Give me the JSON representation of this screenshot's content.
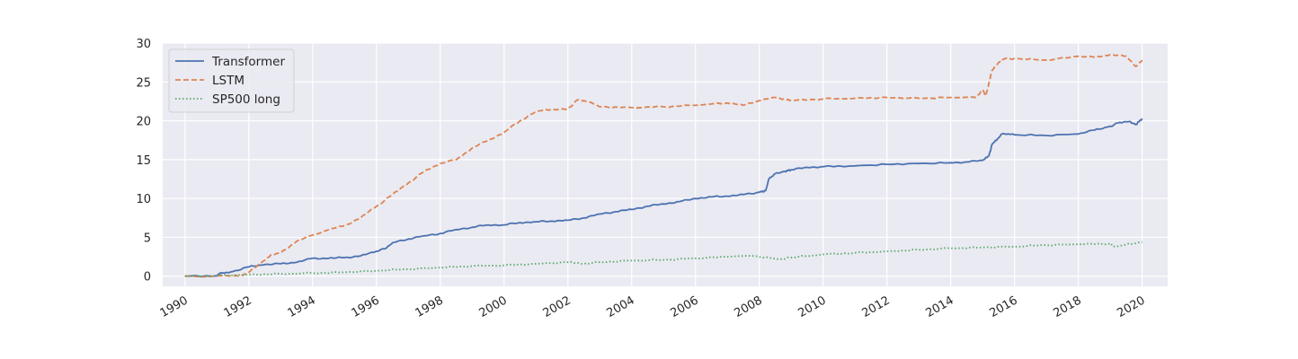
{
  "chart_data": {
    "type": "line",
    "title": "",
    "xlabel": "",
    "ylabel": "",
    "xlim": [
      1989.3,
      2020.8
    ],
    "ylim": [
      -1.3,
      30
    ],
    "grid": true,
    "legend_position": "top-left",
    "yticks": [
      0,
      5,
      10,
      15,
      20,
      25,
      30
    ],
    "xticks": [
      1990,
      1992,
      1994,
      1996,
      1998,
      2000,
      2002,
      2004,
      2006,
      2008,
      2010,
      2012,
      2014,
      2016,
      2018,
      2020
    ],
    "series": [
      {
        "name": "Transformer",
        "color": "#4c72b0",
        "dash": "solid",
        "points": [
          [
            1990.0,
            0.0
          ],
          [
            1991.0,
            0.05
          ],
          [
            1991.1,
            0.4
          ],
          [
            1991.5,
            0.6
          ],
          [
            1992.0,
            1.2
          ],
          [
            1992.5,
            1.5
          ],
          [
            1993.0,
            1.6
          ],
          [
            1993.5,
            1.8
          ],
          [
            1994.0,
            2.3
          ],
          [
            1994.5,
            2.3
          ],
          [
            1995.0,
            2.4
          ],
          [
            1995.5,
            2.6
          ],
          [
            1996.0,
            3.2
          ],
          [
            1996.3,
            3.6
          ],
          [
            1996.5,
            4.3
          ],
          [
            1997.0,
            4.8
          ],
          [
            1997.5,
            5.2
          ],
          [
            1998.0,
            5.5
          ],
          [
            1998.5,
            6.0
          ],
          [
            1999.0,
            6.3
          ],
          [
            1999.5,
            6.6
          ],
          [
            2000.0,
            6.6
          ],
          [
            2000.5,
            6.9
          ],
          [
            2001.0,
            7.0
          ],
          [
            2001.5,
            7.1
          ],
          [
            2002.0,
            7.2
          ],
          [
            2002.5,
            7.5
          ],
          [
            2003.0,
            8.0
          ],
          [
            2003.5,
            8.3
          ],
          [
            2004.0,
            8.6
          ],
          [
            2004.5,
            9.0
          ],
          [
            2005.0,
            9.3
          ],
          [
            2005.5,
            9.6
          ],
          [
            2006.0,
            10.0
          ],
          [
            2006.5,
            10.2
          ],
          [
            2007.0,
            10.3
          ],
          [
            2007.5,
            10.5
          ],
          [
            2008.0,
            10.8
          ],
          [
            2008.2,
            11.0
          ],
          [
            2008.3,
            12.5
          ],
          [
            2008.5,
            13.2
          ],
          [
            2008.8,
            13.5
          ],
          [
            2009.0,
            13.7
          ],
          [
            2009.5,
            14.0
          ],
          [
            2010.0,
            14.1
          ],
          [
            2011.0,
            14.2
          ],
          [
            2012.0,
            14.4
          ],
          [
            2013.0,
            14.5
          ],
          [
            2014.0,
            14.6
          ],
          [
            2014.5,
            14.7
          ],
          [
            2015.0,
            14.9
          ],
          [
            2015.2,
            15.5
          ],
          [
            2015.3,
            17.0
          ],
          [
            2015.5,
            17.8
          ],
          [
            2015.6,
            18.3
          ],
          [
            2016.0,
            18.2
          ],
          [
            2017.0,
            18.1
          ],
          [
            2018.0,
            18.3
          ],
          [
            2018.5,
            18.8
          ],
          [
            2019.0,
            19.3
          ],
          [
            2019.3,
            19.8
          ],
          [
            2019.6,
            19.9
          ],
          [
            2019.8,
            19.5
          ],
          [
            2020.0,
            20.3
          ]
        ]
      },
      {
        "name": "LSTM",
        "color": "#dd8452",
        "dash": "dashed",
        "points": [
          [
            1990.0,
            0.0
          ],
          [
            1991.5,
            0.0
          ],
          [
            1991.8,
            0.1
          ],
          [
            1992.0,
            0.5
          ],
          [
            1992.3,
            1.5
          ],
          [
            1992.7,
            2.8
          ],
          [
            1993.0,
            3.0
          ],
          [
            1993.5,
            4.5
          ],
          [
            1994.0,
            5.3
          ],
          [
            1994.5,
            6.0
          ],
          [
            1995.0,
            6.5
          ],
          [
            1995.5,
            7.5
          ],
          [
            1996.0,
            9.0
          ],
          [
            1996.5,
            10.5
          ],
          [
            1997.0,
            12.0
          ],
          [
            1997.5,
            13.5
          ],
          [
            1998.0,
            14.5
          ],
          [
            1998.5,
            15.0
          ],
          [
            1999.0,
            16.5
          ],
          [
            1999.5,
            17.5
          ],
          [
            2000.0,
            18.5
          ],
          [
            2000.5,
            20.0
          ],
          [
            2001.0,
            21.2
          ],
          [
            2001.5,
            21.5
          ],
          [
            2002.0,
            21.5
          ],
          [
            2002.3,
            22.7
          ],
          [
            2002.6,
            22.5
          ],
          [
            2003.0,
            21.8
          ],
          [
            2004.0,
            21.7
          ],
          [
            2005.0,
            21.8
          ],
          [
            2006.0,
            22.0
          ],
          [
            2007.0,
            22.3
          ],
          [
            2007.5,
            22.0
          ],
          [
            2008.0,
            22.6
          ],
          [
            2008.5,
            23.0
          ],
          [
            2008.8,
            22.8
          ],
          [
            2009.0,
            22.6
          ],
          [
            2010.0,
            22.8
          ],
          [
            2011.0,
            22.9
          ],
          [
            2012.0,
            23.0
          ],
          [
            2013.0,
            22.9
          ],
          [
            2014.0,
            23.0
          ],
          [
            2014.8,
            23.0
          ],
          [
            2015.0,
            24.0
          ],
          [
            2015.1,
            23.2
          ],
          [
            2015.3,
            26.5
          ],
          [
            2015.5,
            27.5
          ],
          [
            2015.7,
            28.0
          ],
          [
            2016.0,
            28.0
          ],
          [
            2017.0,
            27.8
          ],
          [
            2018.0,
            28.3
          ],
          [
            2018.5,
            28.2
          ],
          [
            2019.0,
            28.5
          ],
          [
            2019.5,
            28.3
          ],
          [
            2019.8,
            27.0
          ],
          [
            2020.0,
            27.8
          ]
        ]
      },
      {
        "name": "SP500 long",
        "color": "#55a868",
        "dash": "dotted",
        "points": [
          [
            1990.0,
            0.0
          ],
          [
            1991.0,
            0.1
          ],
          [
            1992.0,
            0.2
          ],
          [
            1993.0,
            0.3
          ],
          [
            1994.0,
            0.4
          ],
          [
            1995.0,
            0.5
          ],
          [
            1996.0,
            0.7
          ],
          [
            1997.0,
            0.9
          ],
          [
            1998.0,
            1.1
          ],
          [
            1999.0,
            1.3
          ],
          [
            2000.0,
            1.4
          ],
          [
            2001.0,
            1.6
          ],
          [
            2002.0,
            1.8
          ],
          [
            2002.5,
            1.6
          ],
          [
            2003.0,
            1.8
          ],
          [
            2004.0,
            2.0
          ],
          [
            2005.0,
            2.1
          ],
          [
            2006.0,
            2.3
          ],
          [
            2007.0,
            2.5
          ],
          [
            2007.8,
            2.6
          ],
          [
            2008.3,
            2.4
          ],
          [
            2008.7,
            2.2
          ],
          [
            2009.0,
            2.4
          ],
          [
            2010.0,
            2.8
          ],
          [
            2011.0,
            3.0
          ],
          [
            2012.0,
            3.2
          ],
          [
            2013.0,
            3.4
          ],
          [
            2014.0,
            3.6
          ],
          [
            2015.0,
            3.7
          ],
          [
            2016.0,
            3.8
          ],
          [
            2017.0,
            4.0
          ],
          [
            2018.0,
            4.1
          ],
          [
            2019.0,
            4.2
          ],
          [
            2019.1,
            3.8
          ],
          [
            2019.5,
            4.1
          ],
          [
            2020.0,
            4.4
          ]
        ]
      }
    ]
  }
}
